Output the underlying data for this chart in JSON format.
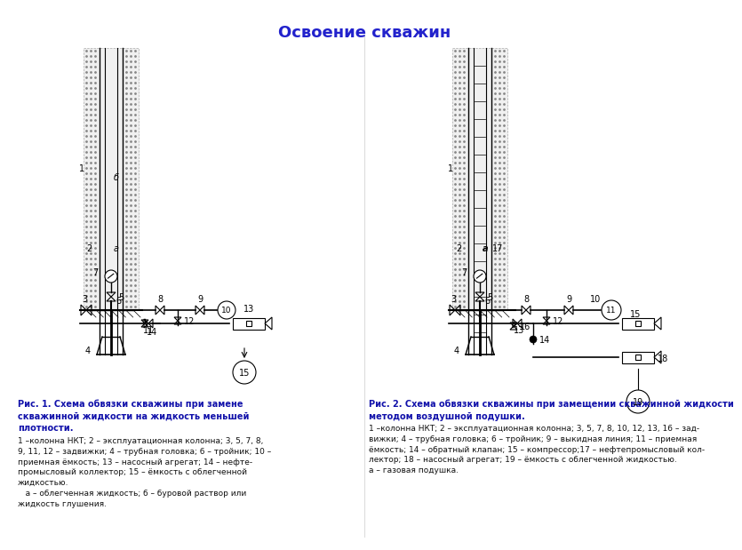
{
  "title": "Освоение скважин",
  "title_color": "#2222cc",
  "bg_color": "#ffffff",
  "lc": "#000000",
  "fig1_caption_bold": "Рис. 1. Схема обвязки скважины при замене\nскважинной жидкости на жидкость меньшей\nплотности.",
  "fig1_caption_normal": "1 –колонна НКТ; 2 – эксплуатационная колонна; 3, 5, 7, 8,\n9, 11, 12 – задвижки; 4 – трубная головка; 6 – тройник; 10 –\nприемная ёмкость; 13 – насосный агрегат; 14 – нефте-\nпромысловый коллектор; 15 – ёмкость с облегченной\nжидкостью.\n   а – облегченная жидкость; б – буровой раствор или\nжидкость глушения.",
  "fig2_caption_bold": "Рис. 2. Схема обвязки скважины при замещении скважинной жидкости\nметодом воздушной подушки.",
  "fig2_caption_normal": "1 –колонна НКТ; 2 – эксплуатационная колонна; 3, 5, 7, 8, 10, 12, 13, 16 – зад-\nвижки; 4 – трубная головка; 6 – тройник; 9 – выкидная линия; 11 – приемная\nёмкость; 14 – обратный клапан; 15 – компрессор;17 – нефтепромысловый кол-\nлектор; 18 – насосный агрегат; 19 – ёмкость с облегченной жидкостью.\nа – газовая подушка."
}
